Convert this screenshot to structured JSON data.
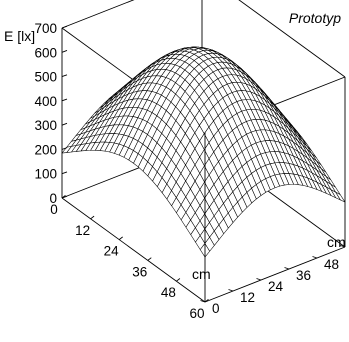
{
  "chart_data": {
    "type": "surface",
    "title": "Prototyp",
    "zlabel": "E [lx]",
    "xlabel": "cm",
    "ylabel": "cm",
    "x_ticks": [
      0,
      12,
      24,
      36,
      48,
      60
    ],
    "y_ticks": [
      0,
      12,
      24,
      36,
      48,
      60
    ],
    "z_ticks": [
      0,
      100,
      200,
      300,
      400,
      500,
      600,
      700
    ],
    "xlim": [
      0,
      60
    ],
    "ylim": [
      0,
      60
    ],
    "zlim": [
      0,
      700
    ],
    "grid_resolution": 30,
    "surface": {
      "peak_value": 690,
      "peak_x": 30,
      "peak_y": 30,
      "corner_value": 185,
      "shape": "gaussian"
    },
    "line_color": "#000000",
    "face_color": "#ffffff"
  }
}
